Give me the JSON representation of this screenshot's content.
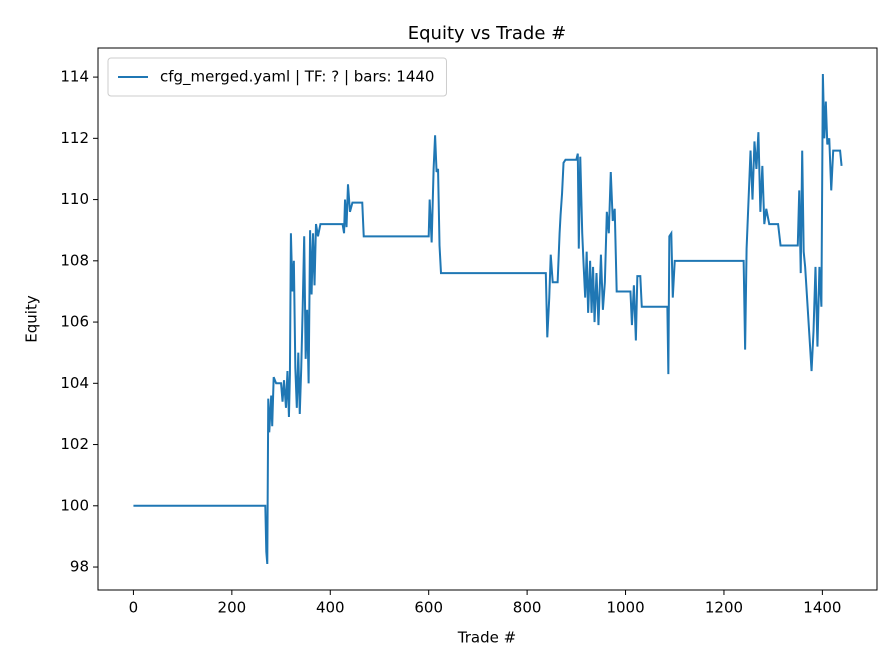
{
  "chart_data": {
    "type": "line",
    "title": "Equity vs Trade #",
    "xlabel": "Trade #",
    "ylabel": "Equity",
    "legend": "upper left",
    "series": [
      {
        "name": "cfg_merged.yaml | TF: ? | bars: 1440",
        "color": "#1f77b4",
        "x": [
          0,
          268,
          270,
          272,
          274,
          276,
          280,
          282,
          285,
          290,
          300,
          303,
          306,
          310,
          313,
          316,
          318,
          320,
          323,
          326,
          329,
          332,
          335,
          338,
          341,
          344,
          347,
          350,
          353,
          356,
          359,
          362,
          365,
          368,
          371,
          375,
          380,
          425,
          428,
          430,
          433,
          436,
          440,
          445,
          465,
          468,
          600,
          602,
          606,
          610,
          613,
          616,
          619,
          622,
          625,
          838,
          841,
          845,
          848,
          852,
          862,
          866,
          868,
          871,
          874,
          878,
          900,
          903,
          905,
          908,
          912,
          915,
          918,
          921,
          924,
          928,
          931,
          934,
          937,
          941,
          945,
          950,
          954,
          958,
          962,
          966,
          970,
          974,
          978,
          982,
          1010,
          1013,
          1017,
          1021,
          1024,
          1030,
          1033,
          1085,
          1087,
          1089,
          1093,
          1096,
          1100,
          1110,
          1240,
          1243,
          1246,
          1250,
          1254,
          1258,
          1262,
          1266,
          1270,
          1274,
          1278,
          1282,
          1286,
          1292,
          1310,
          1315,
          1350,
          1353,
          1356,
          1359,
          1362,
          1365,
          1370,
          1375,
          1378,
          1382,
          1386,
          1390,
          1394,
          1398,
          1401,
          1404,
          1407,
          1410,
          1414,
          1418,
          1422,
          1436,
          1439
        ],
        "values": [
          100,
          100,
          98.5,
          98.1,
          103.5,
          102.4,
          103.6,
          102.6,
          104.2,
          104.0,
          104.0,
          103.4,
          104.1,
          103.2,
          104.4,
          102.9,
          104.3,
          108.9,
          107.0,
          108.0,
          104.5,
          103.2,
          105.0,
          103.0,
          104.5,
          106.5,
          108.8,
          104.8,
          106.4,
          104.0,
          109.0,
          106.9,
          108.9,
          107.2,
          109.2,
          108.8,
          109.2,
          109.2,
          108.9,
          110.0,
          109.1,
          110.5,
          109.6,
          109.9,
          109.9,
          108.8,
          108.8,
          110.0,
          108.6,
          111.0,
          112.1,
          110.9,
          111.0,
          108.5,
          107.6,
          107.6,
          105.5,
          106.8,
          108.2,
          107.3,
          107.3,
          108.9,
          109.5,
          110.2,
          111.2,
          111.3,
          111.3,
          111.5,
          108.4,
          111.4,
          108.9,
          107.8,
          106.8,
          108.3,
          106.3,
          108.0,
          106.3,
          107.8,
          106.0,
          107.6,
          105.9,
          108.2,
          106.4,
          107.3,
          109.6,
          108.9,
          110.9,
          109.3,
          109.7,
          107.0,
          107.0,
          105.9,
          107.2,
          105.4,
          107.5,
          107.5,
          106.5,
          106.5,
          104.3,
          108.8,
          108.9,
          106.8,
          108.0,
          108.0,
          108.0,
          105.1,
          108.4,
          110.0,
          111.6,
          110.0,
          111.9,
          111.0,
          112.2,
          109.6,
          111.1,
          109.2,
          109.7,
          109.2,
          109.2,
          108.5,
          108.5,
          110.3,
          107.6,
          111.6,
          108.3,
          107.8,
          106.5,
          105.2,
          104.4,
          105.7,
          107.8,
          105.2,
          107.8,
          106.5,
          114.1,
          112.0,
          113.2,
          111.8,
          112.0,
          110.3,
          111.6,
          111.6,
          111.1
        ]
      }
    ],
    "xlim": [
      -72,
      1511
    ],
    "xticks": [
      0,
      200,
      400,
      600,
      800,
      1000,
      1200,
      1400
    ],
    "ylim": [
      97.25,
      114.95
    ],
    "yticks": [
      98,
      100,
      102,
      104,
      106,
      108,
      110,
      112,
      114
    ]
  }
}
